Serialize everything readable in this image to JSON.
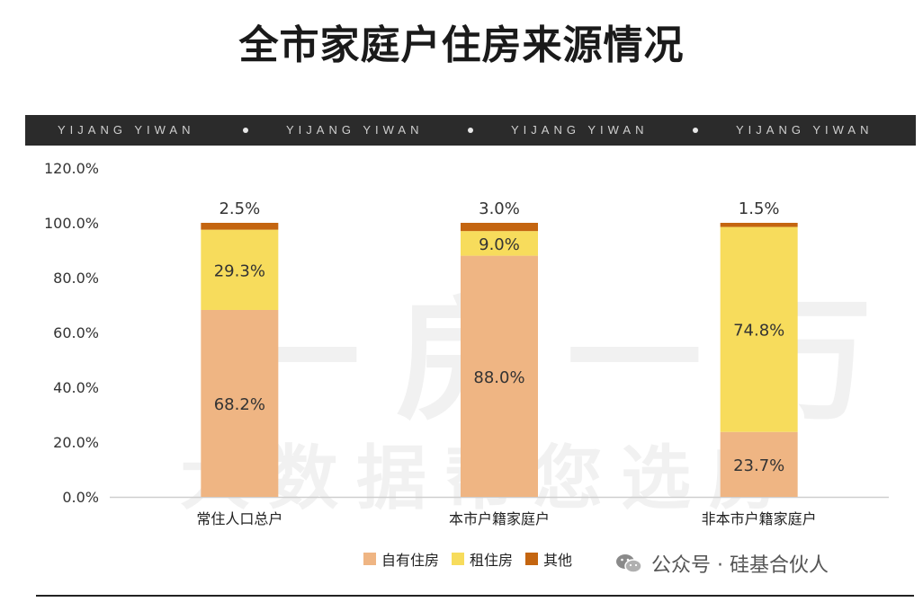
{
  "page": {
    "title": "全市家庭户住房来源情况",
    "banner": [
      "YIJANG YIWAN",
      "YIJANG YIWAN",
      "YIJANG YIWAN",
      "YIJANG YIWAN"
    ],
    "watermark": [
      "一房一万",
      "大数据帮您选房"
    ],
    "credit": "公众号 · 硅基合伙人"
  },
  "chart_data": {
    "type": "bar",
    "stacked": true,
    "categories": [
      "常住人口总户",
      "本市户籍家庭户",
      "非本市户籍家庭户"
    ],
    "series": [
      {
        "name": "自有住房",
        "values": [
          68.2,
          88.0,
          23.7
        ],
        "labels": [
          "68.2%",
          "88.0%",
          "23.7%"
        ],
        "color": "#efb583"
      },
      {
        "name": "租住房",
        "values": [
          29.3,
          9.0,
          74.8
        ],
        "labels": [
          "29.3%",
          "9.0%",
          "74.8%"
        ],
        "color": "#f7dc5c"
      },
      {
        "name": "其他",
        "values": [
          2.5,
          3.0,
          1.5
        ],
        "labels": [
          "2.5%",
          "3.0%",
          "1.5%"
        ],
        "color": "#c46510"
      }
    ],
    "yticks": [
      "0.0%",
      "20.0%",
      "40.0%",
      "60.0%",
      "80.0%",
      "100.0%",
      "120.0%"
    ],
    "ylim": [
      0,
      120
    ],
    "grid": false,
    "legend": "bottom",
    "xlabel": "",
    "ylabel": ""
  }
}
